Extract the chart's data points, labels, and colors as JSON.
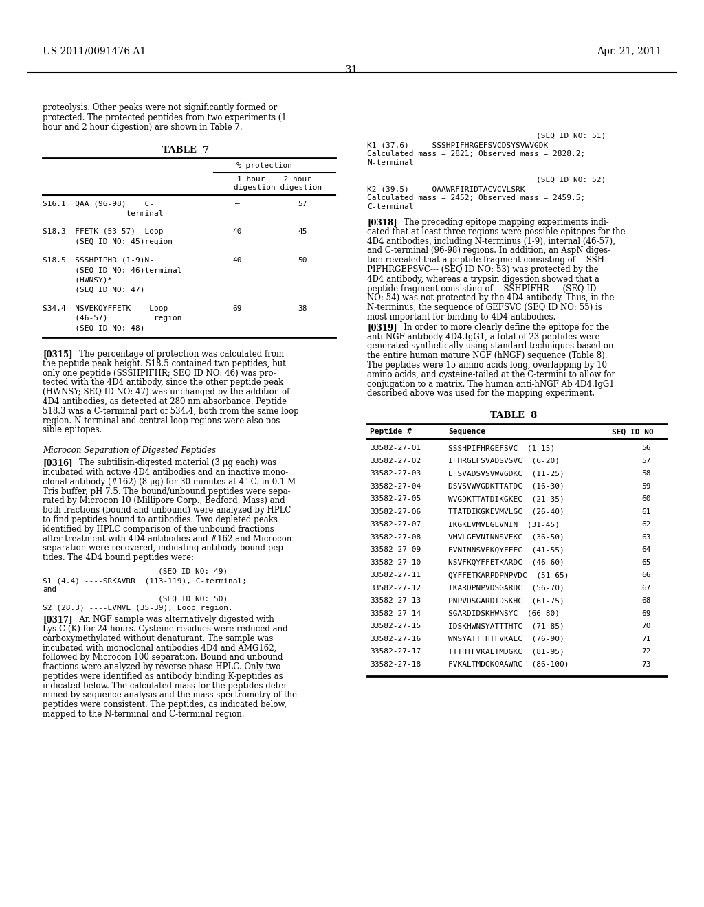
{
  "header_left": "US 2011/0091476 A1",
  "header_right": "Apr. 21, 2011",
  "page_number": "31",
  "background_color": "#ffffff",
  "table7_title": "TABLE  7",
  "table8_title": "TABLE  8",
  "table8_rows": [
    [
      "33582-27-01",
      "SSSHPIFHRGEFSVC  (1-15)",
      "56"
    ],
    [
      "33582-27-02",
      "IFHRGEFSVADSVSVC  (6-20)",
      "57"
    ],
    [
      "33582-27-03",
      "EFSVADSVSVWVGDKC  (11-25)",
      "58"
    ],
    [
      "33582-27-04",
      "DSVSVWVGDKTTATDC  (16-30)",
      "59"
    ],
    [
      "33582-27-05",
      "WVGDKTTATDIKGKEC  (21-35)",
      "60"
    ],
    [
      "33582-27-06",
      "TTATDIKGKEVMVLGC  (26-40)",
      "61"
    ],
    [
      "33582-27-07",
      "IKGKEVMVLGEVNIN  (31-45)",
      "62"
    ],
    [
      "33582-27-08",
      "VMVLGEVNINNSVFKC  (36-50)",
      "63"
    ],
    [
      "33582-27-09",
      "EVNINNSVFKQYFFEC  (41-55)",
      "64"
    ],
    [
      "33582-27-10",
      "NSVFKQYFFETKARDC  (46-60)",
      "65"
    ],
    [
      "33582-27-11",
      "QYFFETKARPDPNPVDC  (51-65)",
      "66"
    ],
    [
      "33582-27-12",
      "TKARDPNPVDSGARDC  (56-70)",
      "67"
    ],
    [
      "33582-27-13",
      "PNPVDSGARDIDSKHC  (61-75)",
      "68"
    ],
    [
      "33582-27-14",
      "SGARDIDSKHWNSYC  (66-80)",
      "69"
    ],
    [
      "33582-27-15",
      "IDSKHWNSYATTTHTC  (71-85)",
      "70"
    ],
    [
      "33582-27-16",
      "WNSYATTTHTFVKALC  (76-90)",
      "71"
    ],
    [
      "33582-27-17",
      "TTTHTFVKALTMDGKC  (81-95)",
      "72"
    ],
    [
      "33582-27-18",
      "FVKALTMDGKQAAWRC  (86-100)",
      "73"
    ]
  ]
}
